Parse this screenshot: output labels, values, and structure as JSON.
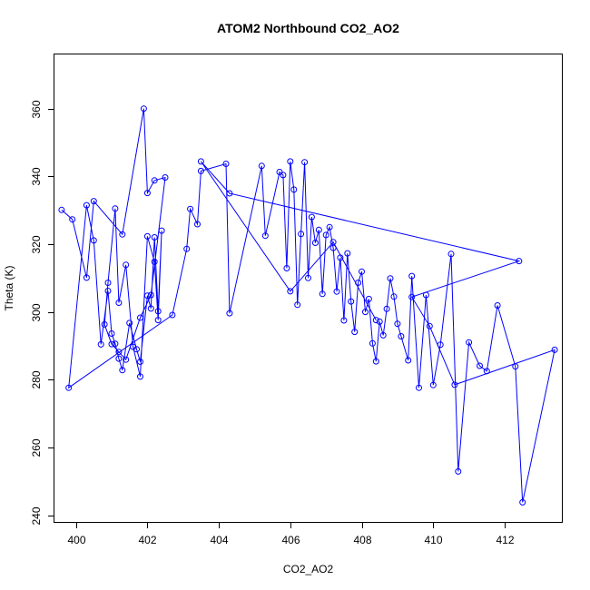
{
  "chart_data": {
    "type": "line",
    "title": "ATOM2 Northbound CO2_AO2",
    "xlabel": "CO2_AO2",
    "ylabel": "Theta (K)",
    "xlim": [
      399.4,
      413.6
    ],
    "ylim": [
      238,
      376
    ],
    "xticks": [
      400,
      402,
      404,
      406,
      408,
      410,
      412
    ],
    "yticks": [
      240,
      260,
      280,
      300,
      320,
      340,
      360
    ],
    "grid": false,
    "markers": "open-circle",
    "line_color": "#0000ff",
    "series": [
      {
        "x": [
          399.6,
          399.9,
          400.3,
          400.5,
          401.3,
          401.9,
          402.0,
          402.2,
          402.5,
          402.1,
          401.8,
          401.4,
          401.2,
          401.0,
          400.8,
          400.9,
          401.1,
          401.2,
          401.4,
          401.6,
          401.8,
          402.0,
          402.2,
          402.3,
          402.4,
          402.3,
          402.2,
          402.1,
          402.0,
          401.8,
          401.7,
          401.5,
          401.3,
          401.2,
          401.1,
          401.0,
          400.9,
          400.7,
          400.5,
          400.3,
          399.8,
          402.7,
          403.1,
          403.2,
          403.4,
          403.5,
          404.2,
          404.3,
          405.2,
          405.3,
          405.7,
          405.8,
          405.9,
          406.0,
          406.1,
          406.2,
          406.3,
          406.4,
          406.5,
          406.6,
          406.7,
          406.8,
          406.9,
          407.0,
          407.1,
          407.2,
          407.3,
          407.4,
          407.5,
          407.6,
          407.7,
          407.8,
          407.9,
          408.0,
          408.1,
          408.2,
          408.3,
          408.4,
          408.5,
          408.6,
          408.7,
          408.8,
          408.9,
          409.0,
          409.1,
          409.3,
          409.4,
          409.6,
          409.8,
          410.0,
          410.2,
          410.5,
          410.7,
          411.0,
          411.3,
          411.5,
          411.8,
          412.3,
          412.5,
          413.4,
          410.6,
          409.9,
          409.4,
          412.4,
          404.3,
          403.5,
          406.0,
          407.2,
          408.4
        ],
        "y": [
          330.1,
          327.3,
          310.1,
          332.7,
          322.9,
          360.0,
          335.1,
          338.8,
          339.7,
          305.0,
          298.3,
          285.9,
          288.2,
          290.5,
          296.3,
          308.6,
          330.5,
          302.7,
          313.9,
          289.7,
          280.9,
          322.3,
          314.8,
          297.6,
          324.0,
          300.2,
          322.0,
          301.0,
          304.8,
          285.3,
          289.0,
          296.7,
          282.8,
          286.2,
          290.6,
          293.6,
          306.2,
          290.4,
          321.1,
          331.5,
          277.6,
          299.1,
          318.6,
          330.4,
          325.9,
          341.6,
          343.7,
          299.6,
          343.1,
          322.5,
          341.3,
          340.4,
          312.9,
          344.4,
          336.1,
          302.1,
          323.0,
          344.2,
          310.0,
          328.0,
          320.4,
          324.2,
          305.3,
          322.7,
          325.0,
          318.9,
          306.0,
          316.0,
          297.5,
          317.3,
          303.1,
          294.1,
          308.6,
          311.9,
          300.0,
          303.8,
          290.7,
          285.4,
          297.1,
          293.1,
          300.9,
          309.9,
          304.5,
          296.5,
          292.8,
          285.7,
          310.6,
          277.6,
          305.0,
          278.4,
          290.3,
          317.1,
          252.9,
          291.0,
          284.1,
          282.5,
          301.9,
          283.9,
          243.8,
          288.8,
          278.5,
          295.8,
          304.4,
          315.0,
          335.0,
          344.4,
          306.1,
          320.6,
          297.6
        ]
      }
    ]
  }
}
